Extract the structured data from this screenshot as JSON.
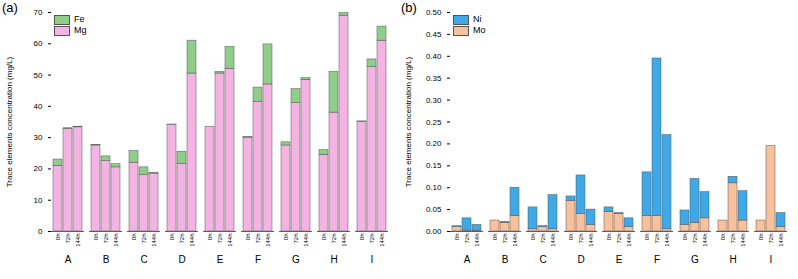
{
  "chart_data": [
    {
      "type": "bar",
      "title": "(a)",
      "stacked": true,
      "legend": "upper left",
      "ylabel": "Trace elements concentration (mg/L)",
      "categories": [
        "A",
        "B",
        "C",
        "D",
        "E",
        "F",
        "G",
        "H",
        "I"
      ],
      "subcategories": [
        "0h",
        "72h",
        "144h"
      ],
      "ylim": [
        0,
        70
      ],
      "yticks": [
        0,
        10,
        20,
        30,
        40,
        50,
        60,
        70
      ],
      "series": [
        {
          "name": "Fe",
          "color": "#8fce8a",
          "values": [
            [
              2,
              0.2,
              0.2
            ],
            [
              0.2,
              1.5,
              1
            ],
            [
              3.7,
              2.5,
              0.3
            ],
            [
              0.2,
              4,
              10.5
            ],
            [
              0,
              0.5,
              7
            ],
            [
              0.2,
              4.5,
              12.8
            ],
            [
              1,
              4.5,
              0.5
            ],
            [
              1.5,
              13,
              1
            ],
            [
              0.2,
              2.5,
              4.5
            ]
          ]
        },
        {
          "name": "Mg",
          "color": "#f5b3e4",
          "values": [
            [
              21,
              32.8,
              33.3
            ],
            [
              27.5,
              22.5,
              20.5
            ],
            [
              22,
              18,
              18.5
            ],
            [
              34,
              21.5,
              50.5
            ],
            [
              33.5,
              50.5,
              52
            ],
            [
              30,
              41.5,
              47
            ],
            [
              27.5,
              41,
              48.5
            ],
            [
              24.5,
              38,
              69
            ],
            [
              35,
              52.5,
              61
            ]
          ]
        }
      ]
    },
    {
      "type": "bar",
      "title": "(b)",
      "stacked": true,
      "legend": "upper left",
      "ylabel": "Trace elements concentration (mg/L)",
      "categories": [
        "A",
        "B",
        "C",
        "D",
        "E",
        "F",
        "G",
        "H",
        "I"
      ],
      "subcategories": [
        "0h",
        "72h",
        "144h"
      ],
      "ylim": [
        0,
        0.5
      ],
      "yticks": [
        {
          "value": 0,
          "label": "0.00"
        },
        {
          "value": 0.05,
          "label": "0.05"
        },
        {
          "value": 0.1,
          "label": "0.10"
        },
        {
          "value": 0.15,
          "label": "0.15"
        },
        {
          "value": 0.2,
          "label": "0.20"
        },
        {
          "value": 0.25,
          "label": "0.25"
        },
        {
          "value": 0.3,
          "label": "0.30"
        },
        {
          "value": 0.35,
          "label": "0.35"
        },
        {
          "value": 0.4,
          "label": "0.40"
        },
        {
          "value": 0.45,
          "label": "0.45"
        },
        {
          "value": 0.5,
          "label": "0.50"
        }
      ],
      "series": [
        {
          "name": "Ni",
          "color": "#3fa9e8",
          "values": [
            [
              0.002,
              0.028,
              0.013
            ],
            [
              0,
              0.002,
              0.065
            ],
            [
              0.05,
              0.002,
              0.078
            ],
            [
              0.01,
              0.088,
              0.035
            ],
            [
              0.01,
              0.002,
              0.02
            ],
            [
              0.1,
              0.36,
              0.215
            ],
            [
              0.033,
              0.1,
              0.06
            ],
            [
              0,
              0.015,
              0.067
            ],
            [
              0,
              0,
              0.032
            ]
          ]
        },
        {
          "name": "Mo",
          "color": "#f7c19d",
          "values": [
            [
              0.01,
              0.002,
              0.002
            ],
            [
              0.025,
              0.02,
              0.035
            ],
            [
              0.005,
              0.01,
              0.005
            ],
            [
              0.07,
              0.04,
              0.015
            ],
            [
              0.045,
              0.04,
              0.01
            ],
            [
              0.035,
              0.035,
              0.005
            ],
            [
              0.015,
              0.02,
              0.03
            ],
            [
              0.025,
              0.11,
              0.025
            ],
            [
              0.025,
              0.195,
              0.01
            ]
          ]
        }
      ]
    }
  ]
}
